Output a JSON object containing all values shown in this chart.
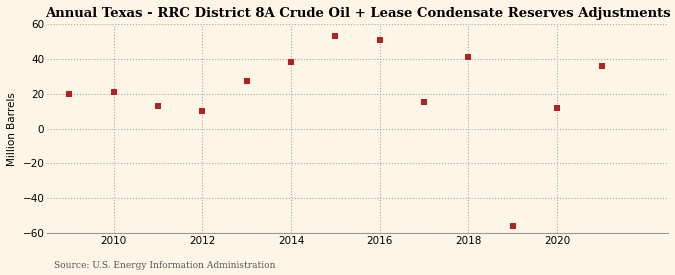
{
  "title": "Annual Texas - RRC District 8A Crude Oil + Lease Condensate Reserves Adjustments",
  "ylabel": "Million Barrels",
  "source": "Source: U.S. Energy Information Administration",
  "years": [
    2009,
    2010,
    2011,
    2012,
    2013,
    2014,
    2015,
    2016,
    2017,
    2018,
    2019,
    2020,
    2021
  ],
  "values": [
    20,
    21,
    13,
    10,
    27,
    38,
    53,
    51,
    15,
    41,
    -56,
    12,
    36
  ],
  "xlim": [
    2008.5,
    2022.5
  ],
  "ylim": [
    -60,
    60
  ],
  "yticks": [
    -60,
    -40,
    -20,
    0,
    20,
    40,
    60
  ],
  "xticks": [
    2010,
    2012,
    2014,
    2016,
    2018,
    2020
  ],
  "marker_color": "#b22222",
  "marker": "s",
  "marker_size": 4,
  "background_color": "#fdf5e6",
  "grid_color": "#aaaaaa",
  "title_fontsize": 9.5,
  "label_fontsize": 7.5,
  "tick_fontsize": 7.5,
  "source_fontsize": 6.5
}
